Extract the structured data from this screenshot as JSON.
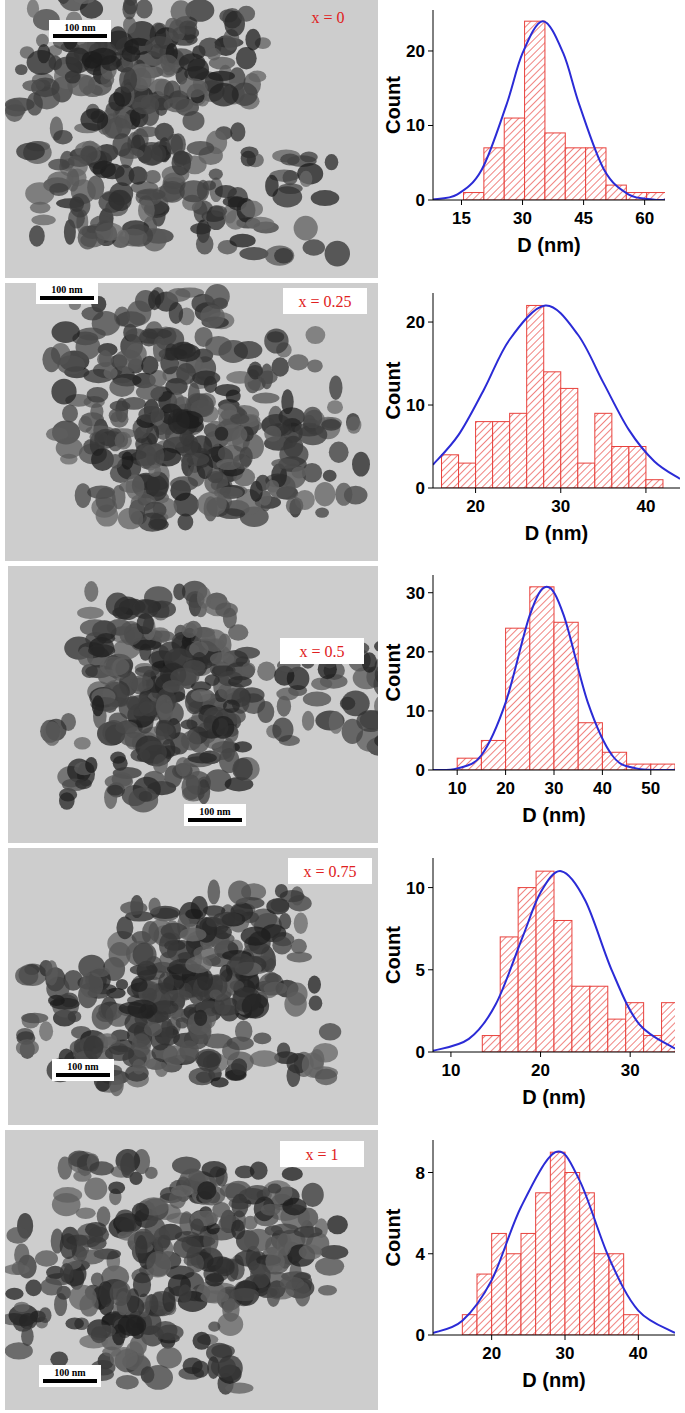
{
  "panels": [
    {
      "label": "x = 0",
      "scale_bar": "100 nm"
    },
    {
      "label": "x = 0.25",
      "scale_bar": "100 nm"
    },
    {
      "label": "x = 0.5",
      "scale_bar": "100 nm"
    },
    {
      "label": "x = 0.75",
      "scale_bar": "100 nm"
    },
    {
      "label": "x = 1",
      "scale_bar": "100 nm"
    }
  ],
  "chart_data": [
    {
      "type": "histogram",
      "x_label": "D (nm)",
      "y_label": "Count",
      "color": "#e8413c",
      "bins": [
        15.5,
        20.5,
        25.5,
        30.5,
        35.5,
        40.5,
        45.5,
        50.5,
        55.5,
        60.5,
        65.5
      ],
      "counts": [
        1,
        7,
        11,
        24,
        9,
        7,
        7,
        2,
        1,
        1
      ],
      "xlim": [
        8,
        65
      ],
      "xticks": [
        15,
        30,
        45,
        60
      ],
      "ylim": [
        0,
        25.5
      ],
      "yticks": [
        0,
        10,
        20
      ],
      "fit": {
        "type": "line",
        "color": "#2b2bd6",
        "x": [
          8,
          14,
          20,
          26,
          30,
          35,
          40,
          44,
          50,
          56,
          62,
          65
        ],
        "values": [
          0.08,
          0.76,
          4.1,
          12.7,
          19.7,
          24,
          19.7,
          12.7,
          4.1,
          0.76,
          0.08,
          0.02
        ]
      }
    },
    {
      "type": "histogram",
      "x_label": "D (nm)",
      "y_label": "Count",
      "color": "#e8413c",
      "bins": [
        16,
        18,
        20,
        22,
        24,
        26,
        28,
        30,
        32,
        34,
        36,
        38,
        40,
        42
      ],
      "counts": [
        4,
        3,
        8,
        8,
        9,
        22,
        14,
        12,
        3,
        9,
        5,
        5,
        1
      ],
      "xlim": [
        15,
        44
      ],
      "xticks": [
        20,
        30,
        40
      ],
      "ylim": [
        0,
        23.5
      ],
      "yticks": [
        0,
        10,
        20
      ],
      "fit": {
        "type": "line",
        "color": "#2b2bd6",
        "x": [
          15,
          18,
          21,
          24,
          28.2,
          32,
          35,
          38,
          41,
          44
        ],
        "values": [
          2.8,
          6.4,
          11.9,
          17.9,
          22,
          18.5,
          12.7,
          7.0,
          3.2,
          1.1
        ]
      }
    },
    {
      "type": "histogram",
      "x_label": "D (nm)",
      "y_label": "Count",
      "color": "#e8413c",
      "bins": [
        10,
        15,
        20,
        25,
        30,
        35,
        40,
        45,
        50,
        55
      ],
      "counts": [
        2,
        5,
        24,
        31,
        25,
        8,
        3,
        1,
        1
      ],
      "xlim": [
        5,
        55
      ],
      "xticks": [
        10,
        20,
        30,
        40,
        50
      ],
      "ylim": [
        0,
        33
      ],
      "yticks": [
        0,
        10,
        20,
        30
      ],
      "fit": {
        "type": "line",
        "color": "#2b2bd6",
        "x": [
          5,
          10,
          15,
          20,
          25,
          28.5,
          32,
          37,
          42,
          47,
          55
        ],
        "values": [
          0.01,
          0.27,
          2.5,
          11.4,
          26.2,
          31,
          26.2,
          11.4,
          2.5,
          0.27,
          0
        ]
      }
    },
    {
      "type": "histogram",
      "x_label": "D (nm)",
      "y_label": "Count",
      "color": "#e8413c",
      "bins": [
        13.5,
        15.5,
        17.5,
        19.5,
        21.5,
        23.5,
        25.5,
        27.5,
        29.5,
        31.5,
        33.5,
        35.5
      ],
      "counts": [
        1,
        7,
        10,
        11,
        8,
        4,
        4,
        2,
        3,
        1,
        3
      ],
      "xlim": [
        8,
        35
      ],
      "xticks": [
        10,
        20,
        30
      ],
      "ylim": [
        0,
        11.8
      ],
      "yticks": [
        0,
        5,
        10
      ],
      "fit": {
        "type": "line",
        "color": "#2b2bd6",
        "x": [
          8,
          12,
          15,
          18,
          20,
          22.3,
          25,
          28,
          31,
          35
        ],
        "values": [
          0.07,
          0.8,
          2.9,
          7.0,
          9.7,
          11,
          9.2,
          4.9,
          1.7,
          0.2
        ]
      }
    },
    {
      "type": "histogram",
      "x_label": "D (nm)",
      "y_label": "Count",
      "color": "#e8413c",
      "bins": [
        16,
        18,
        20,
        22,
        24,
        26,
        28,
        30,
        32,
        34,
        36,
        38,
        40
      ],
      "counts": [
        1,
        3,
        5,
        4,
        5,
        7,
        9,
        8,
        7,
        4,
        4,
        1
      ],
      "xlim": [
        12,
        45
      ],
      "xticks": [
        20,
        30,
        40
      ],
      "ylim": [
        0,
        9.6
      ],
      "yticks": [
        0,
        4,
        8
      ],
      "fit": {
        "type": "line",
        "color": "#2b2bd6",
        "x": [
          12,
          16,
          20,
          24,
          28.7,
          32,
          36,
          40,
          45
        ],
        "values": [
          0.1,
          0.7,
          2.7,
          6.3,
          9,
          7.6,
          3.8,
          1.2,
          0.1
        ]
      }
    }
  ]
}
